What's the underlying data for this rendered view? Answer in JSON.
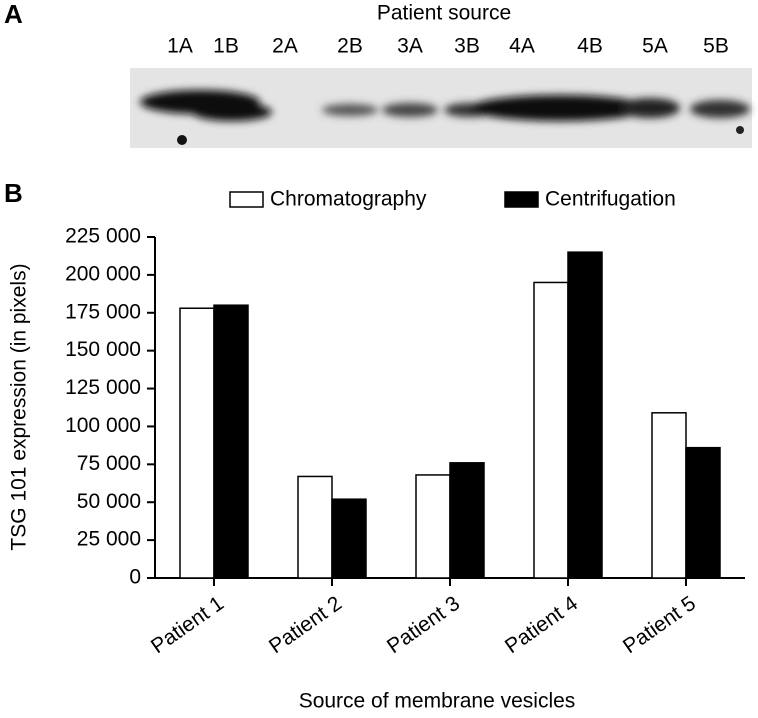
{
  "panel_a": {
    "label": "A",
    "title": "Patient source",
    "lanes": [
      "1A",
      "1B",
      "2A",
      "2B",
      "3A",
      "3B",
      "4A",
      "4B",
      "5A",
      "5B"
    ]
  },
  "chart_data": {
    "type": "bar",
    "panel_label": "B",
    "y_label": "TSG 101 expression (in pixels)",
    "x_label": "Source of membrane vesicles",
    "categories": [
      "Patient 1",
      "Patient 2",
      "Patient 3",
      "Patient 4",
      "Patient 5"
    ],
    "series": [
      {
        "name": "Chromatography",
        "color": "#ffffff",
        "values": [
          178000,
          67000,
          68000,
          195000,
          109000
        ]
      },
      {
        "name": "Centrifugation",
        "color": "#000000",
        "values": [
          180000,
          52000,
          76000,
          215000,
          86000
        ]
      }
    ],
    "ylim": [
      0,
      225000
    ],
    "yticks": [
      0,
      {
        "value": 25000,
        "label": "25 000"
      },
      {
        "value": 50000,
        "label": "50 000"
      },
      {
        "value": 75000,
        "label": "75 000"
      },
      {
        "value": 100000,
        "label": "100 000"
      },
      {
        "value": 125000,
        "label": "125 000"
      },
      {
        "value": 150000,
        "label": "150 000"
      },
      {
        "value": 175000,
        "label": "175 000"
      },
      {
        "value": 200000,
        "label": "200 000"
      },
      {
        "value": 225000,
        "label": "225 000"
      }
    ]
  }
}
